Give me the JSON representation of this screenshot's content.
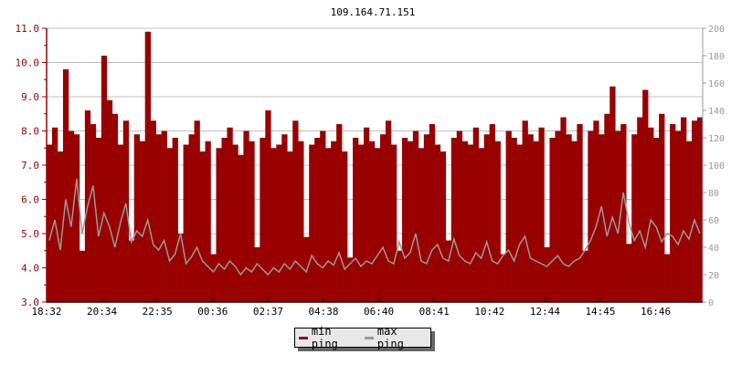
{
  "chart_data": {
    "type": "bar",
    "title": "109.164.71.151",
    "x_tick_labels": [
      "18:32",
      "20:34",
      "22:35",
      "00:36",
      "02:37",
      "04:38",
      "06:40",
      "08:41",
      "10:42",
      "12:44",
      "14:45",
      "16:46"
    ],
    "y_left": {
      "ylim": [
        3.0,
        11.0
      ],
      "tick_labels": [
        "3.0",
        "4.0",
        "5.0",
        "6.0",
        "7.0",
        "8.0",
        "9.0",
        "10.0",
        "11.0"
      ]
    },
    "y_right": {
      "ylim": [
        0,
        200
      ],
      "tick_labels": [
        "0",
        "20",
        "40",
        "60",
        "80",
        "100",
        "120",
        "140",
        "160",
        "180",
        "200"
      ]
    },
    "grid": true,
    "legend_placement": "bottom-center",
    "colors": {
      "min_ping": "#990000",
      "max_ping": "#999999"
    },
    "series": [
      {
        "name": "min ping",
        "axis": "left",
        "type": "bar",
        "values": [
          7.6,
          8.1,
          7.4,
          9.8,
          8.0,
          7.9,
          4.5,
          8.6,
          8.2,
          7.8,
          10.2,
          8.9,
          8.5,
          7.6,
          8.3,
          4.8,
          7.9,
          7.7,
          10.9,
          8.3,
          7.9,
          8.0,
          7.5,
          7.8,
          5.0,
          7.6,
          7.9,
          8.3,
          7.4,
          7.7,
          4.4,
          7.5,
          7.8,
          8.1,
          7.6,
          7.3,
          8.0,
          7.7,
          4.6,
          7.8,
          8.6,
          7.5,
          7.6,
          7.9,
          7.4,
          8.3,
          7.7,
          4.9,
          7.6,
          7.8,
          8.0,
          7.5,
          7.7,
          8.2,
          7.4,
          4.3,
          7.8,
          7.6,
          8.1,
          7.7,
          7.5,
          7.9,
          8.3,
          7.6,
          4.5,
          7.8,
          7.7,
          8.0,
          7.5,
          7.9,
          8.2,
          7.6,
          7.4,
          4.8,
          7.8,
          8.0,
          7.7,
          7.6,
          8.1,
          7.5,
          7.9,
          8.2,
          7.7,
          4.4,
          8.0,
          7.8,
          7.6,
          8.3,
          7.9,
          7.7,
          8.1,
          4.6,
          7.8,
          8.0,
          8.4,
          7.9,
          7.7,
          8.2,
          4.5,
          8.0,
          8.3,
          7.9,
          8.5,
          9.3,
          8.0,
          8.2,
          4.7,
          7.9,
          8.4,
          9.2,
          8.1,
          7.8,
          8.5,
          4.4,
          8.2,
          8.0,
          8.4,
          7.7,
          8.3,
          8.4
        ]
      },
      {
        "name": "max ping",
        "axis": "right",
        "type": "line",
        "values": [
          45,
          60,
          38,
          75,
          55,
          90,
          50,
          70,
          85,
          48,
          65,
          55,
          40,
          58,
          72,
          44,
          52,
          48,
          60,
          42,
          38,
          45,
          30,
          35,
          50,
          28,
          33,
          40,
          30,
          26,
          22,
          28,
          24,
          30,
          26,
          20,
          25,
          22,
          28,
          24,
          20,
          25,
          22,
          28,
          24,
          30,
          26,
          22,
          34,
          28,
          25,
          30,
          27,
          36,
          24,
          28,
          32,
          26,
          30,
          28,
          34,
          40,
          30,
          28,
          44,
          32,
          36,
          50,
          30,
          28,
          38,
          42,
          32,
          30,
          46,
          34,
          30,
          28,
          36,
          32,
          44,
          30,
          28,
          34,
          38,
          30,
          42,
          48,
          32,
          30,
          28,
          26,
          30,
          34,
          28,
          26,
          30,
          32,
          38,
          45,
          55,
          70,
          48,
          62,
          50,
          80,
          58,
          45,
          52,
          40,
          60,
          55,
          44,
          50,
          48,
          42,
          52,
          46,
          60,
          50
        ]
      }
    ]
  },
  "legend": {
    "items": [
      "min ping",
      "max ping"
    ]
  }
}
